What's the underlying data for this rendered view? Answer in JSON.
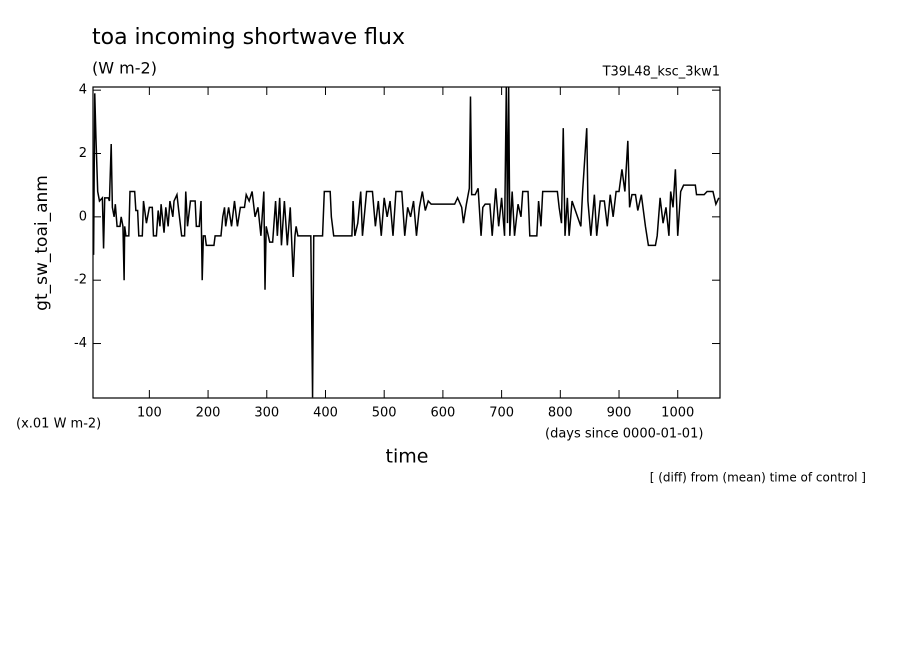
{
  "chart_data": {
    "type": "line",
    "title": "toa incoming shortwave flux",
    "subtitle": "(W m-2)",
    "experiment": "T39L48_ksc_3kw1",
    "y_label": "gt_sw_toai_anm",
    "y_units": "(x.01 W m-2)",
    "x_label": "time",
    "x_units": "(days since 0000-01-01)",
    "note": "[ (diff) from (mean) time of control ]",
    "xlim": [
      4,
      1072
    ],
    "ylim": [
      -5.72,
      4.1
    ],
    "xticks": [
      100,
      200,
      300,
      400,
      500,
      600,
      700,
      800,
      900,
      1000
    ],
    "yticks": [
      -4,
      -2,
      0,
      2,
      4
    ],
    "color": "#000000",
    "x": [
      5,
      7,
      9,
      12,
      15,
      20,
      22,
      24,
      30,
      32,
      35,
      37,
      40,
      42,
      45,
      50,
      52,
      55,
      57,
      58,
      60,
      65,
      67,
      75,
      77,
      80,
      82,
      88,
      90,
      95,
      100,
      105,
      107,
      112,
      115,
      118,
      120,
      125,
      128,
      132,
      135,
      140,
      142,
      147,
      150,
      155,
      160,
      162,
      165,
      170,
      178,
      180,
      185,
      188,
      190,
      192,
      195,
      197,
      210,
      212,
      222,
      225,
      228,
      230,
      235,
      240,
      245,
      250,
      255,
      262,
      265,
      270,
      275,
      280,
      285,
      290,
      295,
      297,
      299,
      305,
      310,
      315,
      318,
      322,
      325,
      330,
      335,
      340,
      345,
      348,
      350,
      353,
      360,
      375,
      378,
      380,
      395,
      398,
      408,
      410,
      414,
      445,
      447,
      450,
      455,
      460,
      463,
      470,
      480,
      485,
      490,
      495,
      500,
      505,
      510,
      515,
      520,
      530,
      535,
      540,
      545,
      550,
      555,
      560,
      565,
      570,
      575,
      580,
      620,
      625,
      632,
      635,
      640,
      645,
      647,
      649,
      655,
      660,
      665,
      668,
      672,
      680,
      684,
      690,
      695,
      700,
      705,
      708,
      710,
      712,
      714,
      718,
      722,
      728,
      733,
      736,
      745,
      748,
      760,
      763,
      767,
      770,
      795,
      798,
      802,
      805,
      808,
      812,
      815,
      820,
      835,
      838,
      845,
      847,
      852,
      858,
      862,
      868,
      875,
      880,
      885,
      890,
      895,
      900,
      905,
      910,
      915,
      918,
      922,
      928,
      932,
      938,
      945,
      950,
      962,
      965,
      970,
      975,
      980,
      985,
      988,
      992,
      996,
      998,
      1000,
      1005,
      1010,
      1030,
      1032,
      1045,
      1050,
      1060,
      1065,
      1070
    ],
    "values": [
      -1.2,
      3.9,
      2.5,
      0.8,
      0.5,
      0.6,
      -1.0,
      0.6,
      0.6,
      0.5,
      2.3,
      0.3,
      0,
      0.4,
      -0.3,
      -0.3,
      0,
      -0.3,
      -2.0,
      -0.3,
      -0.6,
      -0.6,
      0.8,
      0.8,
      0.2,
      0.2,
      -0.6,
      -0.6,
      0.5,
      -0.2,
      0.3,
      0.3,
      -0.6,
      -0.6,
      0.2,
      -0.3,
      0.4,
      -0.5,
      0.3,
      -0.3,
      0.5,
      0,
      0.5,
      0.7,
      0.2,
      -0.6,
      -0.6,
      0.8,
      -0.3,
      0.5,
      0.5,
      -0.3,
      -0.3,
      0.5,
      -2.0,
      -0.6,
      -0.6,
      -0.9,
      -0.9,
      -0.6,
      -0.6,
      0,
      0.3,
      -0.3,
      0.3,
      -0.3,
      0.5,
      -0.3,
      0.3,
      0.3,
      0.7,
      0.5,
      0.8,
      0,
      0.3,
      -0.6,
      0.8,
      -2.3,
      -0.3,
      -0.8,
      -0.8,
      0.5,
      -0.6,
      0.6,
      -0.9,
      0.5,
      -0.9,
      0.3,
      -1.9,
      -0.6,
      -0.3,
      -0.6,
      -0.6,
      -0.6,
      -5.7,
      -0.6,
      -0.6,
      0.8,
      0.8,
      0,
      -0.6,
      -0.6,
      0.5,
      -0.6,
      -0.2,
      0.8,
      -0.6,
      0.8,
      0.8,
      -0.3,
      0.5,
      -0.6,
      0.6,
      0,
      0.5,
      -0.6,
      0.8,
      0.8,
      -0.6,
      0.3,
      0,
      0.5,
      -0.6,
      0.3,
      0.8,
      0.2,
      0.5,
      0.4,
      0.4,
      0.6,
      0.3,
      -0.2,
      0.4,
      0.9,
      3.8,
      0.7,
      0.7,
      0.9,
      -0.6,
      0.3,
      0.4,
      0.4,
      -0.6,
      0.9,
      -0.3,
      0.6,
      -0.6,
      4.1,
      -0.2,
      4.1,
      -0.6,
      0.8,
      -0.6,
      0.4,
      0,
      0.8,
      0.8,
      -0.6,
      -0.6,
      0.5,
      -0.3,
      0.8,
      0.8,
      0.3,
      -0.2,
      2.8,
      -0.6,
      0.6,
      -0.6,
      0.5,
      -0.3,
      0.8,
      2.8,
      0.5,
      -0.6,
      0.7,
      -0.6,
      0.5,
      0.5,
      -0.3,
      0.7,
      0,
      0.8,
      0.8,
      1.5,
      0.8,
      2.4,
      0.3,
      0.7,
      0.7,
      0.2,
      0.7,
      -0.3,
      -0.9,
      -0.9,
      -0.6,
      0.6,
      -0.2,
      0.3,
      -0.6,
      0.8,
      0.3,
      1.5,
      0.5,
      -0.6,
      0.8,
      1.0,
      1.0,
      0.7,
      0.7,
      0.8,
      0.8,
      0.4,
      0.6
    ]
  }
}
